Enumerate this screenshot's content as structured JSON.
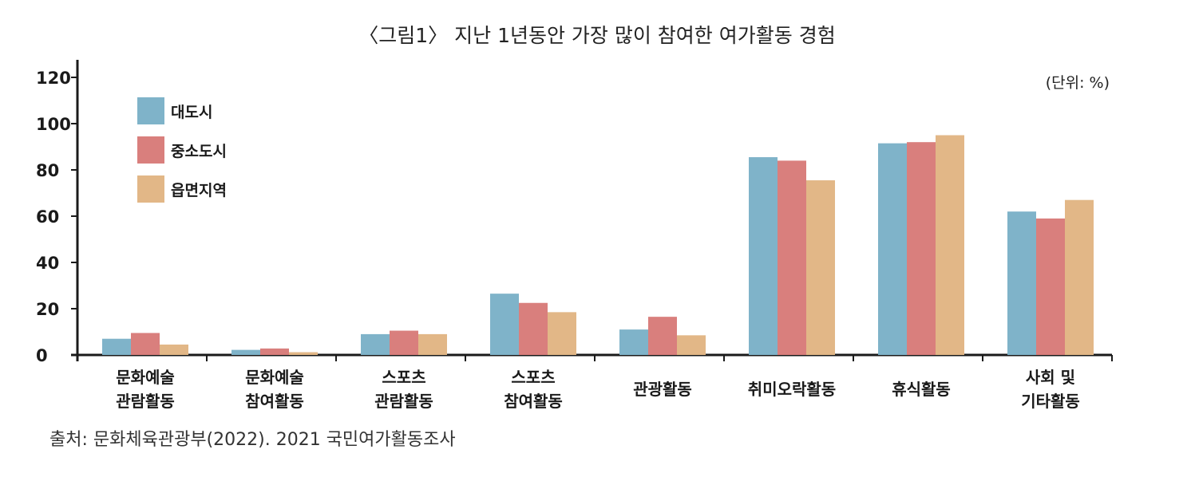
{
  "chart_data": {
    "type": "bar",
    "title": "〈그림1〉 지난 1년동안 가장 많이 참여한 여가활동 경험",
    "unit_label": "(단위: %)",
    "categories": [
      [
        "문화예술",
        "관람활동"
      ],
      [
        "문화예술",
        "참여활동"
      ],
      [
        "스포츠",
        "관람활동"
      ],
      [
        "스포츠",
        "참여활동"
      ],
      [
        "관광활동"
      ],
      [
        "취미오락활동"
      ],
      [
        "휴식활동"
      ],
      [
        "사회 및",
        "기타활동"
      ]
    ],
    "series": [
      {
        "name": "대도시",
        "color": "#7fb3c9",
        "values": [
          7,
          2.2,
          9,
          26.5,
          11,
          85.5,
          91.5,
          62
        ]
      },
      {
        "name": "중소도시",
        "color": "#d97f7d",
        "values": [
          9.5,
          2.8,
          10.5,
          22.5,
          16.5,
          84,
          92,
          59
        ]
      },
      {
        "name": "읍면지역",
        "color": "#e2b787",
        "values": [
          4.5,
          1.2,
          9,
          18.5,
          8.5,
          75.5,
          95,
          67
        ]
      }
    ],
    "yticks": [
      0,
      20,
      40,
      60,
      80,
      100,
      120
    ],
    "ylim": [
      0,
      125
    ],
    "grid": false,
    "legend_position": "top-left"
  },
  "source_text": "출처: 문화체육관광부(2022). 2021 국민여가활동조사"
}
